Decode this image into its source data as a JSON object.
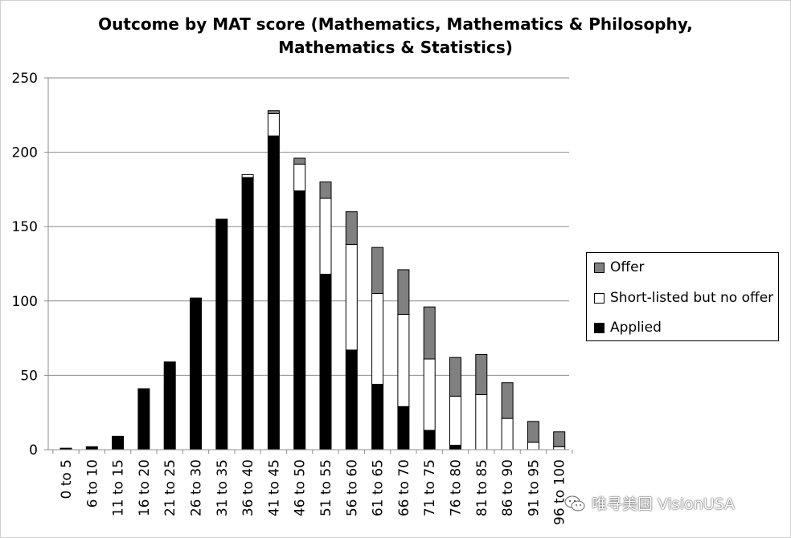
{
  "chart_data": {
    "type": "bar",
    "stacked": true,
    "title": "Outcome by MAT score (Mathematics, Mathematics & Philosophy, Mathematics & Statistics)",
    "title_lines": [
      "Outcome by MAT score (Mathematics, Mathematics & Philosophy,",
      "Mathematics & Statistics)"
    ],
    "xlabel": "",
    "ylabel": "",
    "ylim": [
      0,
      250
    ],
    "yticks": [
      0,
      50,
      100,
      150,
      200,
      250
    ],
    "grid": true,
    "legend_position": "right",
    "categories": [
      "0 to 5",
      "6 to 10",
      "11 to 15",
      "16 to 20",
      "21 to 25",
      "26 to 30",
      "31 to 35",
      "36 to 40",
      "41 to 45",
      "46 to 50",
      "51 to 55",
      "56 to 60",
      "61 to 65",
      "66 to 70",
      "71 to 75",
      "76 to 80",
      "81 to 85",
      "86 to 90",
      "91 to 95",
      "96 to 100"
    ],
    "series": [
      {
        "name": "Applied",
        "color": "#000000",
        "values": [
          1,
          2,
          9,
          41,
          59,
          102,
          155,
          183,
          211,
          174,
          118,
          67,
          44,
          29,
          13,
          3,
          0,
          0,
          0,
          0
        ]
      },
      {
        "name": "Short-listed but no offer",
        "color": "#ffffff",
        "values": [
          0,
          0,
          0,
          0,
          0,
          0,
          0,
          2,
          15,
          18,
          51,
          71,
          61,
          62,
          48,
          33,
          37,
          21,
          5,
          2
        ]
      },
      {
        "name": "Offer",
        "color": "#808080",
        "values": [
          0,
          0,
          0,
          0,
          0,
          0,
          0,
          0,
          2,
          4,
          11,
          22,
          31,
          30,
          35,
          26,
          27,
          24,
          14,
          10
        ]
      }
    ],
    "legend_order": [
      "Offer",
      "Short-listed but no offer",
      "Applied"
    ]
  },
  "watermark": {
    "text": "唯寻美国 VisionUSA",
    "icon": "wechat-icon"
  }
}
